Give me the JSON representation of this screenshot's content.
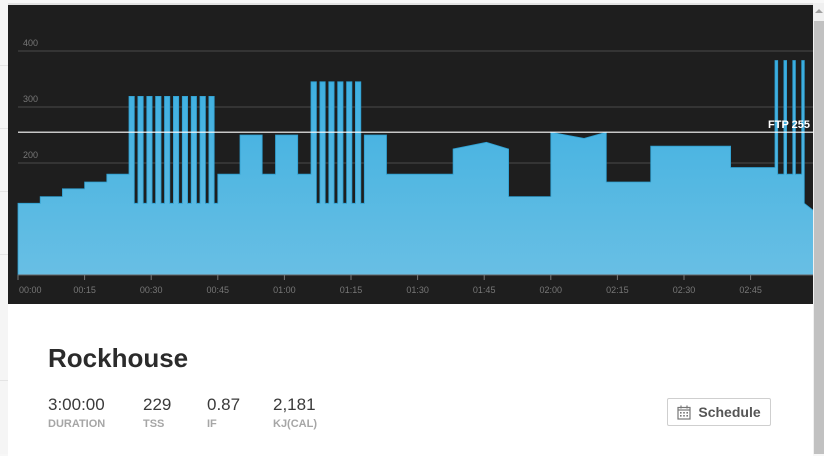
{
  "workout": {
    "title": "Rockhouse",
    "stats": [
      {
        "value": "3:00:00",
        "label": "DURATION"
      },
      {
        "value": "229",
        "label": "TSS"
      },
      {
        "value": "0.87",
        "label": "IF"
      },
      {
        "value": "2,181",
        "label": "KJ(CAL)"
      }
    ],
    "schedule_label": "Schedule"
  },
  "colors": {
    "background": "#1e1e1e",
    "fill_top": "#3aaee0",
    "fill_bottom": "#68bfe4",
    "ftp_line": "#ffffff"
  },
  "chart_data": {
    "type": "area",
    "xlabel": "",
    "ylabel": "",
    "xlim": [
      0,
      180
    ],
    "ylim": [
      0,
      420
    ],
    "y_ticks": [
      200,
      300,
      400
    ],
    "x_ticks": [
      {
        "t": 0,
        "label": "00:00"
      },
      {
        "t": 15,
        "label": "00:15"
      },
      {
        "t": 30,
        "label": "00:30"
      },
      {
        "t": 45,
        "label": "00:45"
      },
      {
        "t": 60,
        "label": "01:00"
      },
      {
        "t": 75,
        "label": "01:15"
      },
      {
        "t": 90,
        "label": "01:30"
      },
      {
        "t": 105,
        "label": "01:45"
      },
      {
        "t": 120,
        "label": "02:00"
      },
      {
        "t": 135,
        "label": "02:15"
      },
      {
        "t": 150,
        "label": "02:30"
      },
      {
        "t": 165,
        "label": "02:45"
      }
    ],
    "grid": true,
    "ftp": {
      "value": 255,
      "label": "FTP 255"
    },
    "points": [
      [
        0,
        128
      ],
      [
        5,
        128
      ],
      [
        5,
        140
      ],
      [
        10,
        140
      ],
      [
        10,
        154
      ],
      [
        15,
        154
      ],
      [
        15,
        166
      ],
      [
        20,
        166
      ],
      [
        20,
        180
      ],
      [
        25,
        180
      ],
      [
        25,
        319
      ],
      [
        26.2,
        319
      ],
      [
        26.2,
        128
      ],
      [
        27,
        128
      ],
      [
        27,
        319
      ],
      [
        28.2,
        319
      ],
      [
        28.2,
        128
      ],
      [
        29,
        128
      ],
      [
        29,
        319
      ],
      [
        30.2,
        319
      ],
      [
        30.2,
        128
      ],
      [
        31,
        128
      ],
      [
        31,
        319
      ],
      [
        32.2,
        319
      ],
      [
        32.2,
        128
      ],
      [
        33,
        128
      ],
      [
        33,
        319
      ],
      [
        34.2,
        319
      ],
      [
        34.2,
        128
      ],
      [
        35,
        128
      ],
      [
        35,
        319
      ],
      [
        36.2,
        319
      ],
      [
        36.2,
        128
      ],
      [
        37,
        128
      ],
      [
        37,
        319
      ],
      [
        38.2,
        319
      ],
      [
        38.2,
        128
      ],
      [
        39,
        128
      ],
      [
        39,
        319
      ],
      [
        40.2,
        319
      ],
      [
        40.2,
        128
      ],
      [
        41,
        128
      ],
      [
        41,
        319
      ],
      [
        42.2,
        319
      ],
      [
        42.2,
        128
      ],
      [
        43,
        128
      ],
      [
        43,
        319
      ],
      [
        44.2,
        319
      ],
      [
        44.2,
        128
      ],
      [
        45,
        128
      ],
      [
        45,
        180
      ],
      [
        50,
        180
      ],
      [
        50,
        250
      ],
      [
        55,
        250
      ],
      [
        55,
        180
      ],
      [
        58,
        180
      ],
      [
        58,
        250
      ],
      [
        63,
        250
      ],
      [
        63,
        180
      ],
      [
        66,
        180
      ],
      [
        66,
        345
      ],
      [
        67.2,
        345
      ],
      [
        67.2,
        128
      ],
      [
        68,
        128
      ],
      [
        68,
        345
      ],
      [
        69.2,
        345
      ],
      [
        69.2,
        128
      ],
      [
        70,
        128
      ],
      [
        70,
        345
      ],
      [
        71.2,
        345
      ],
      [
        71.2,
        128
      ],
      [
        72,
        128
      ],
      [
        72,
        345
      ],
      [
        73.2,
        345
      ],
      [
        73.2,
        128
      ],
      [
        74,
        128
      ],
      [
        74,
        345
      ],
      [
        75.2,
        345
      ],
      [
        75.2,
        128
      ],
      [
        76,
        128
      ],
      [
        76,
        345
      ],
      [
        77.2,
        345
      ],
      [
        77.2,
        128
      ],
      [
        78,
        128
      ],
      [
        78,
        250
      ],
      [
        83,
        250
      ],
      [
        83,
        180
      ],
      [
        98,
        180
      ],
      [
        98,
        225
      ],
      [
        105.5,
        237
      ],
      [
        110.5,
        225
      ],
      [
        110.5,
        140
      ],
      [
        120,
        140
      ],
      [
        120,
        255
      ],
      [
        127.5,
        244
      ],
      [
        132.5,
        255
      ],
      [
        132.5,
        166
      ],
      [
        142.5,
        166
      ],
      [
        142.5,
        230
      ],
      [
        160.5,
        230
      ],
      [
        160.5,
        192
      ],
      [
        170.5,
        192
      ],
      [
        170.5,
        383
      ],
      [
        171.1,
        383
      ],
      [
        171.1,
        180
      ],
      [
        172.5,
        180
      ],
      [
        172.5,
        383
      ],
      [
        173.1,
        383
      ],
      [
        173.1,
        180
      ],
      [
        174.5,
        180
      ],
      [
        174.5,
        383
      ],
      [
        175.1,
        383
      ],
      [
        175.1,
        180
      ],
      [
        176.5,
        180
      ],
      [
        176.5,
        383
      ],
      [
        177.1,
        383
      ],
      [
        177.1,
        128
      ],
      [
        180,
        110
      ]
    ]
  }
}
